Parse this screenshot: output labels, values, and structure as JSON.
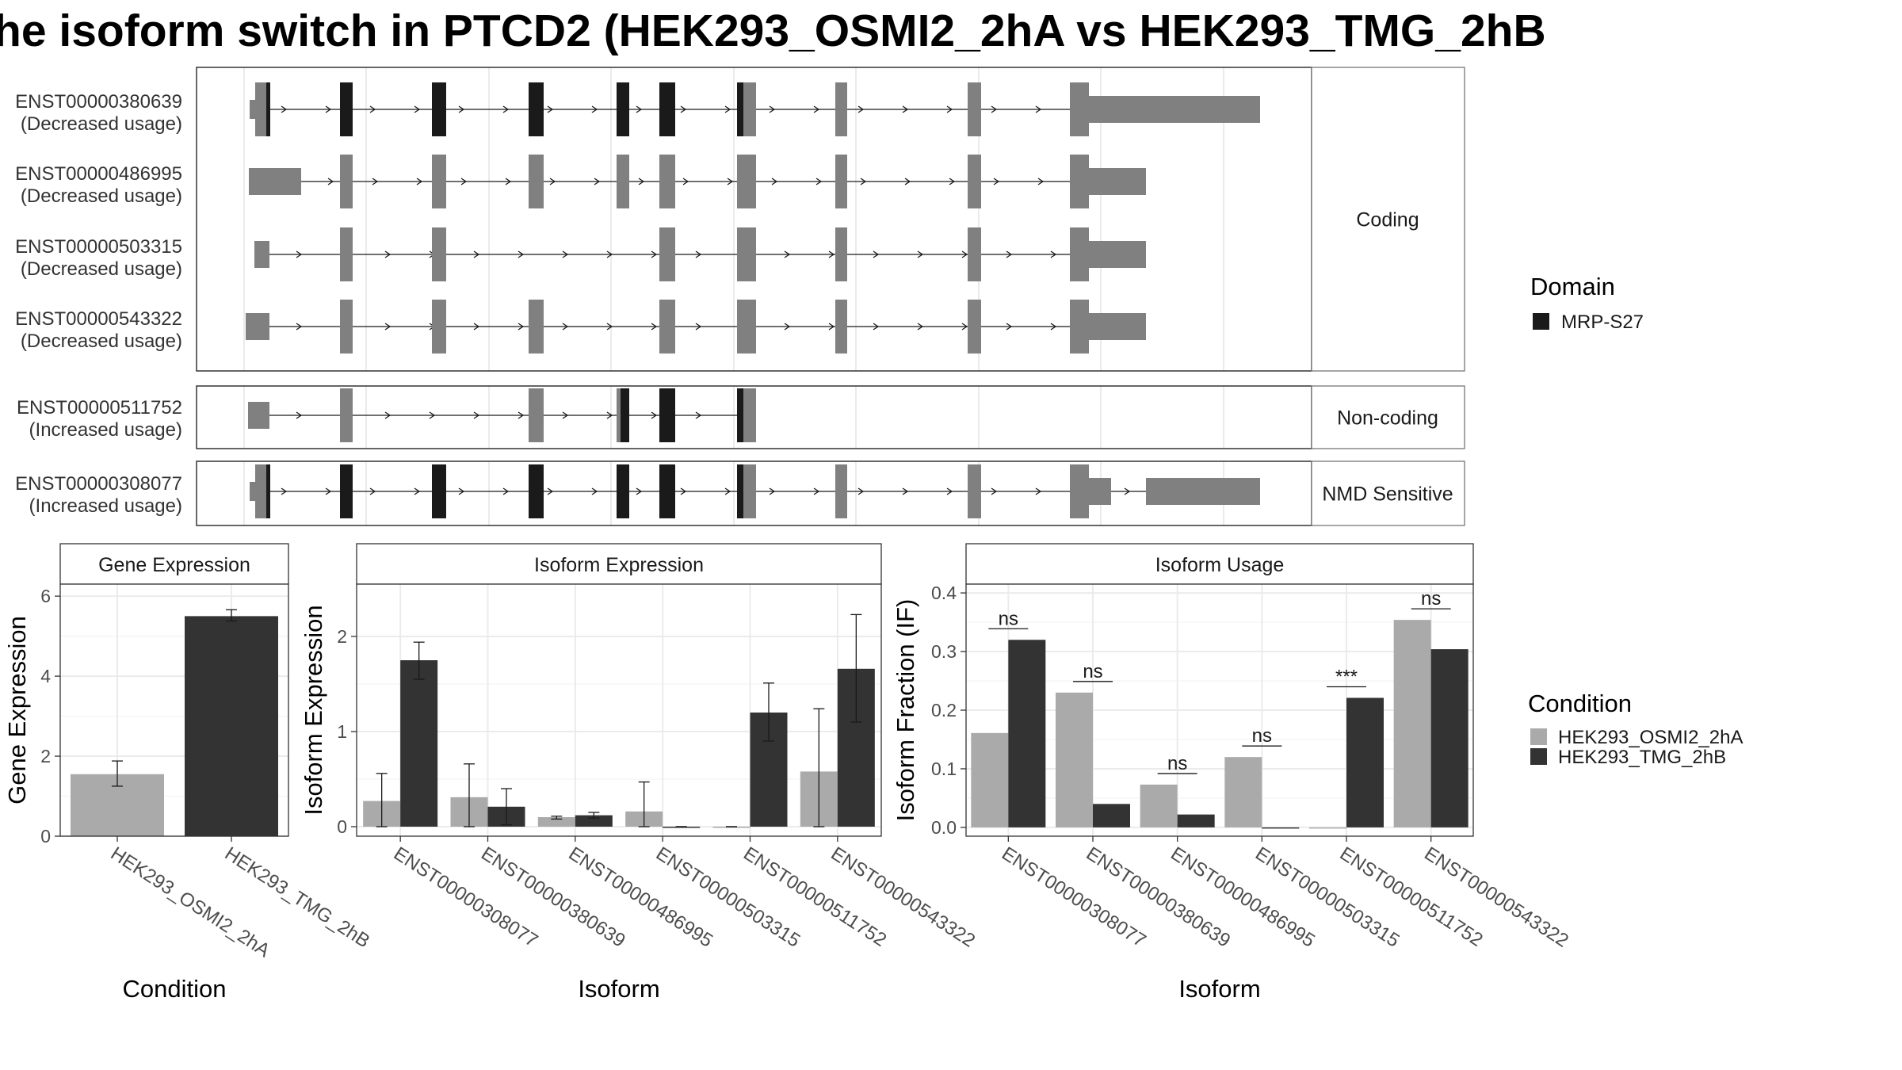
{
  "title": "he isoform switch in PTCD2 (HEK293_OSMI2_2hA vs HEK293_TMG_2hB",
  "colors": {
    "isoform": "#808080",
    "domain": "#1a1a1a",
    "cond1": "#aaaaaa",
    "cond2": "#333333"
  },
  "chart_data": [
    {
      "type": "gene-structure",
      "panels": [
        "Coding",
        "Non-coding",
        "NMD Sensitive"
      ],
      "legend": {
        "title": "Domain",
        "entries": [
          "MRP-S27"
        ]
      },
      "transcripts": [
        {
          "id": "ENST00000380639",
          "usage": "(Decreased usage)",
          "class": "Coding"
        },
        {
          "id": "ENST00000486995",
          "usage": "(Decreased usage)",
          "class": "Coding"
        },
        {
          "id": "ENST00000503315",
          "usage": "(Decreased usage)",
          "class": "Coding"
        },
        {
          "id": "ENST00000543322",
          "usage": "(Decreased usage)",
          "class": "Coding"
        },
        {
          "id": "ENST00000511752",
          "usage": "(Increased usage)",
          "class": "Non-coding"
        },
        {
          "id": "ENST00000308077",
          "usage": "(Increased usage)",
          "class": "NMD Sensitive"
        }
      ]
    },
    {
      "type": "bar",
      "title": "Gene Expression",
      "xlabel": "Condition",
      "ylabel": "Gene Expression",
      "ylim": [
        0,
        6.3
      ],
      "yticks": [
        0,
        2,
        4,
        6
      ],
      "categories": [
        "HEK293_OSMI2_2hA",
        "HEK293_TMG_2hB"
      ],
      "values": [
        1.55,
        5.5
      ],
      "errors": [
        [
          1.25,
          1.88
        ],
        [
          5.38,
          5.66
        ]
      ]
    },
    {
      "type": "bar",
      "title": "Isoform Expression",
      "xlabel": "Isoform",
      "ylabel": "Isoform Expression",
      "ylim": [
        -0.1,
        2.55
      ],
      "yticks": [
        0,
        1,
        2
      ],
      "categories": [
        "ENST00000308077",
        "ENST00000380639",
        "ENST00000486995",
        "ENST00000503315",
        "ENST00000511752",
        "ENST00000543322"
      ],
      "series": [
        {
          "name": "HEK293_OSMI2_2hA",
          "values": [
            0.27,
            0.31,
            0.1,
            0.16,
            0.0,
            0.58
          ],
          "errors": [
            [
              0.0,
              0.56
            ],
            [
              0.0,
              0.66
            ],
            [
              0.08,
              0.11
            ],
            [
              0.0,
              0.47
            ],
            [
              0.0,
              0.0
            ],
            [
              0.0,
              1.24
            ]
          ]
        },
        {
          "name": "HEK293_TMG_2hB",
          "values": [
            1.75,
            0.21,
            0.12,
            0.0,
            1.2,
            1.66
          ],
          "errors": [
            [
              1.55,
              1.94
            ],
            [
              0.02,
              0.4
            ],
            [
              0.09,
              0.15
            ],
            [
              0.0,
              0.0
            ],
            [
              0.9,
              1.51
            ],
            [
              1.1,
              2.23
            ]
          ]
        }
      ]
    },
    {
      "type": "bar",
      "title": "Isoform Usage",
      "xlabel": "Isoform",
      "ylabel": "Isoform Fraction (IF)",
      "ylim": [
        -0.015,
        0.415
      ],
      "yticks": [
        0.0,
        0.1,
        0.2,
        0.3,
        0.4
      ],
      "categories": [
        "ENST00000308077",
        "ENST00000380639",
        "ENST00000486995",
        "ENST00000503315",
        "ENST00000511752",
        "ENST00000543322"
      ],
      "series": [
        {
          "name": "HEK293_OSMI2_2hA",
          "values": [
            0.161,
            0.23,
            0.073,
            0.12,
            0.0,
            0.354
          ]
        },
        {
          "name": "HEK293_TMG_2hB",
          "values": [
            0.32,
            0.04,
            0.022,
            0.0,
            0.221,
            0.304
          ]
        }
      ],
      "significance": [
        "ns",
        "ns",
        "ns",
        "ns",
        "***",
        "ns"
      ]
    }
  ],
  "legend_condition": {
    "title": "Condition",
    "entries": [
      "HEK293_OSMI2_2hA",
      "HEK293_TMG_2hB"
    ]
  }
}
